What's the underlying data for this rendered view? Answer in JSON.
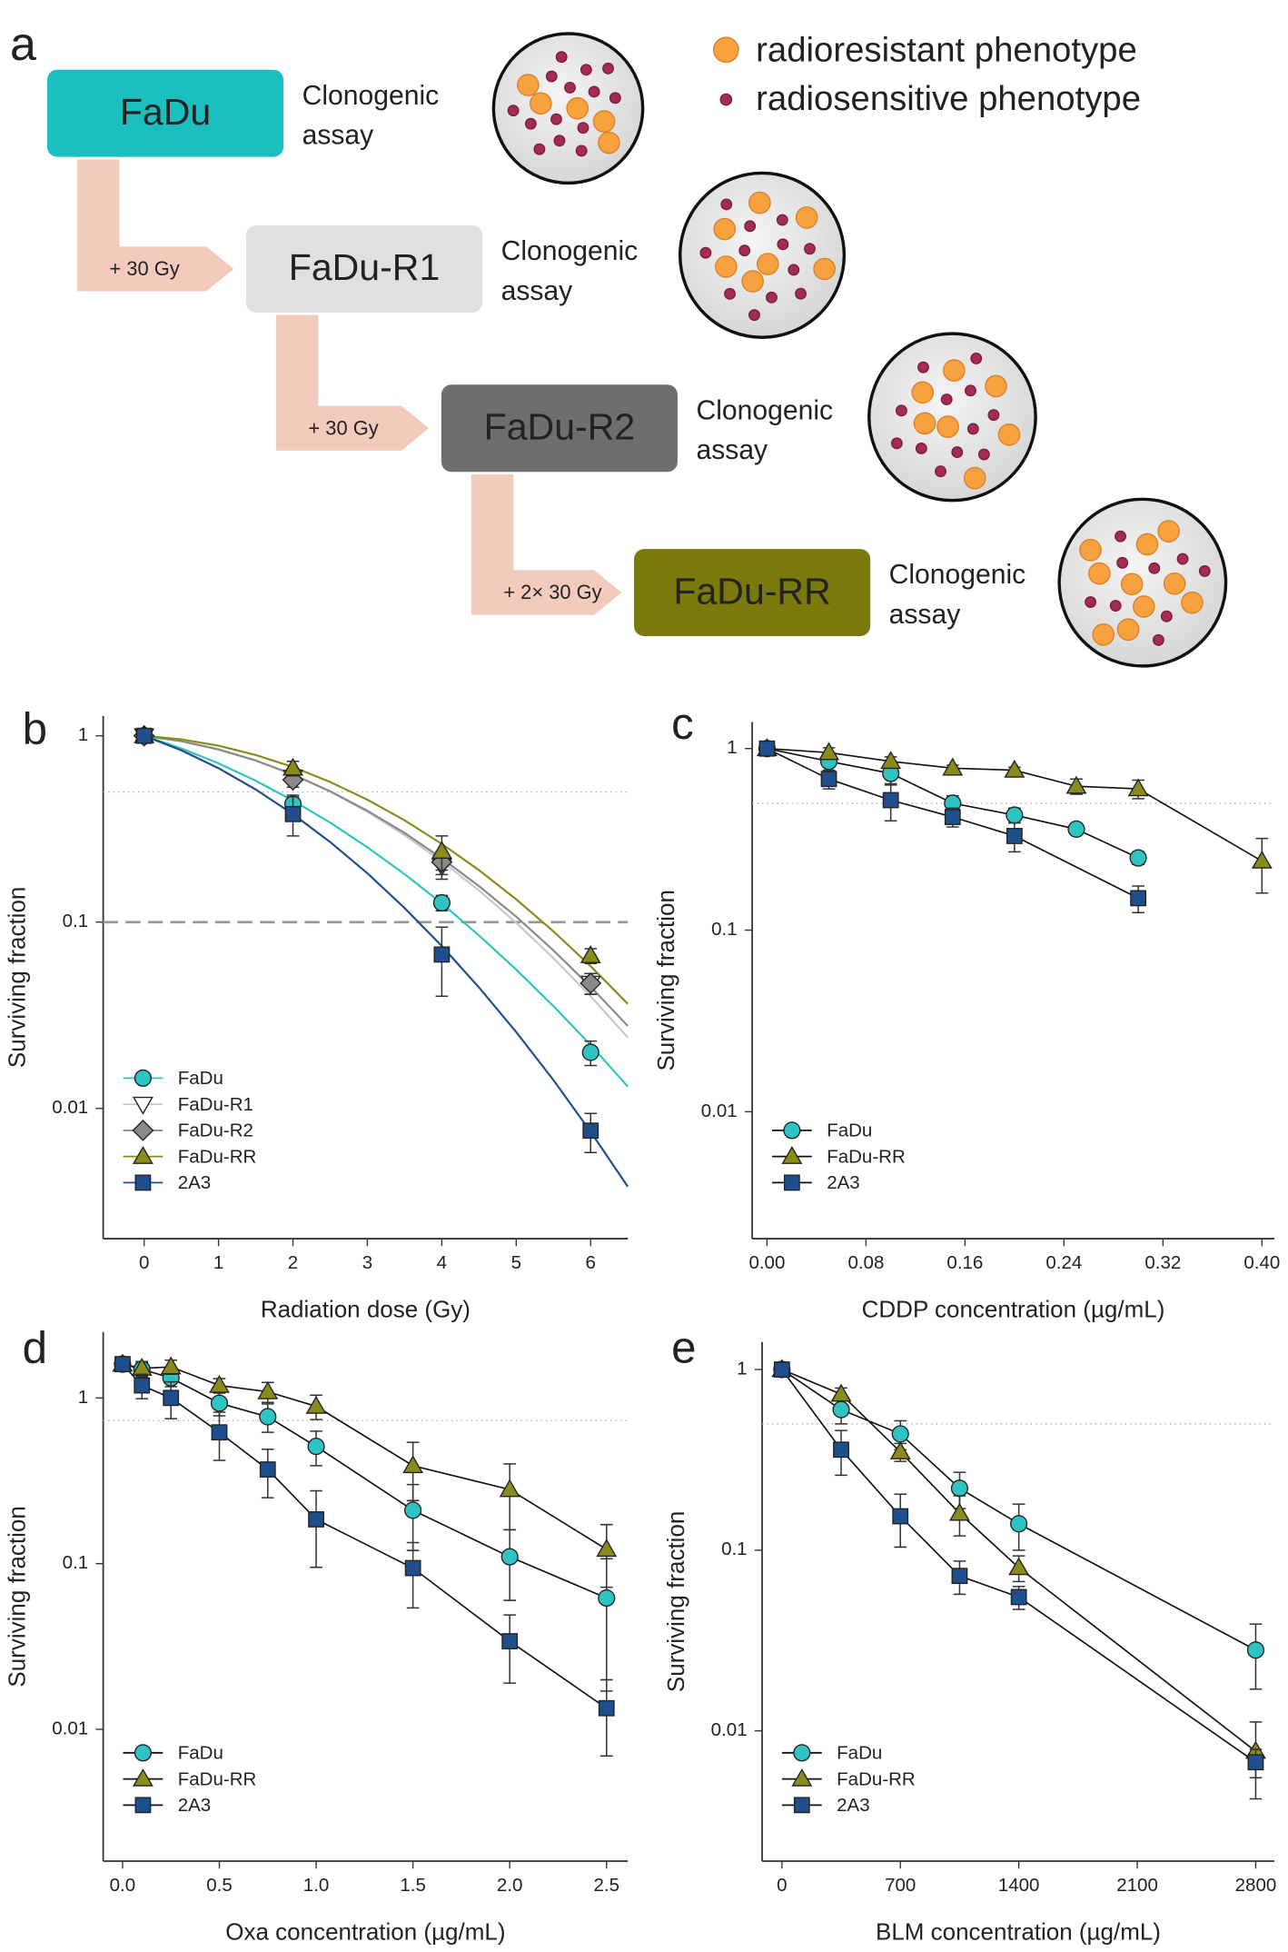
{
  "diagram": {
    "panel": "a",
    "legend": [
      {
        "label": "radioresistant phenotype",
        "color": "#f7a23e"
      },
      {
        "label": "radiosensitive phenotype",
        "color": "#a52a56"
      }
    ],
    "stages": [
      {
        "name": "FaDu",
        "box_color": "#1bbfbf",
        "text_color": "#ffffff",
        "result": [
          "Clonogenic",
          "assay"
        ]
      },
      {
        "name": "FaDu-R1",
        "box_color": "#e0e0e0",
        "text_color": "#ffffff",
        "result": [
          "Clonogenic",
          "assay"
        ]
      },
      {
        "name": "FaDu-R2",
        "box_color": "#6e6e6e",
        "text_color": "#ffffff",
        "result": [
          "Clonogenic",
          "assay"
        ]
      },
      {
        "name": "FaDu-RR",
        "box_color": "#7a7a0c",
        "text_color": "#ffffff",
        "result": [
          "Clonogenic",
          "assay"
        ]
      }
    ],
    "steps": [
      "+ 30 Gy",
      "+ 30 Gy",
      "+ 2× 30 Gy"
    ]
  },
  "chart_data": [
    {
      "type": "scatter",
      "panel": "b",
      "xlabel": "Radiation dose (Gy)",
      "ylabel": "Surviving fraction",
      "yscale": "log",
      "legend": "lower left",
      "xlim": [
        -0.55,
        6.5
      ],
      "ylim": [
        0.002,
        1.28
      ],
      "xticks": [
        0,
        1,
        2,
        3,
        4,
        5,
        6
      ],
      "yticks": [
        1,
        0.1,
        0.01
      ],
      "reference_lines": [
        {
          "value": 0.5,
          "style": "dotted"
        },
        {
          "value": 0.1,
          "style": "dashed"
        }
      ],
      "fit_x": [
        0,
        0.5,
        1,
        1.5,
        2,
        2.5,
        3,
        3.5,
        4,
        4.5,
        5,
        5.5,
        6,
        6.5
      ],
      "series": [
        {
          "name": "FaDu",
          "color": "#2ec4c4",
          "marker": "circle",
          "x": [
            0,
            2,
            4,
            6
          ],
          "values": [
            1,
            0.43,
            0.127,
            0.02
          ],
          "errors": [
            0.02,
            0.05,
            0.012,
            0.003
          ],
          "fit_values": [
            1,
            0.856,
            0.711,
            0.574,
            0.449,
            0.342,
            0.252,
            0.181,
            0.126,
            0.0848,
            0.0556,
            0.0354,
            0.0219,
            0.0131
          ]
        },
        {
          "name": "FaDu-R1",
          "color": "#c8c8c8",
          "marker": "triangle-down",
          "x": [
            0,
            2,
            4,
            6
          ],
          "values": [
            1,
            0.6,
            0.2,
            0.047
          ],
          "errors": [
            0.02,
            0.05,
            0.03,
            0.006
          ],
          "fit_values": [
            1,
            0.938,
            0.848,
            0.739,
            0.62,
            0.501,
            0.391,
            0.293,
            0.212,
            0.148,
            0.0992,
            0.0641,
            0.04,
            0.024
          ]
        },
        {
          "name": "FaDu-R2",
          "color": "#8a8a8a",
          "marker": "diamond",
          "x": [
            0,
            2,
            4,
            6
          ],
          "values": [
            1,
            0.58,
            0.21,
            0.047
          ],
          "errors": [
            0.02,
            0.05,
            0.03,
            0.006
          ],
          "fit_values": [
            1,
            0.935,
            0.844,
            0.736,
            0.62,
            0.504,
            0.396,
            0.301,
            0.22,
            0.156,
            0.107,
            0.0705,
            0.045,
            0.0277
          ]
        },
        {
          "name": "FaDu-RR",
          "color": "#8b8b1c",
          "marker": "triangle",
          "x": [
            0,
            2,
            4,
            6
          ],
          "values": [
            1,
            0.67,
            0.24,
            0.066
          ],
          "errors": [
            0.02,
            0.06,
            0.05,
            0.006
          ],
          "fit_values": [
            1,
            0.957,
            0.885,
            0.789,
            0.68,
            0.565,
            0.454,
            0.352,
            0.263,
            0.19,
            0.1325,
            0.0892,
            0.058,
            0.0364
          ]
        },
        {
          "name": "2A3",
          "color": "#1f4e8c",
          "marker": "square",
          "x": [
            0,
            2,
            4,
            6
          ],
          "values": [
            1,
            0.38,
            0.067,
            0.0076
          ],
          "errors": [
            0.02,
            0.09,
            0.027,
            0.0018
          ],
          "fit_values": [
            1,
            0.836,
            0.67,
            0.515,
            0.38,
            0.269,
            0.183,
            0.119,
            0.0744,
            0.0446,
            0.0257,
            0.0142,
            0.0075,
            0.0038
          ]
        }
      ]
    },
    {
      "type": "line",
      "panel": "c",
      "xlabel": "CDDP concentration (µg/mL)",
      "ylabel": "Surviving fraction",
      "yscale": "log",
      "legend": "lower left",
      "line_color": "#111111",
      "xlim": [
        -0.012,
        0.41
      ],
      "ylim": [
        0.002,
        1.4
      ],
      "xticks": [
        {
          "value": 0,
          "label": "0.00"
        },
        0.08,
        0.16,
        0.24,
        0.32,
        {
          "value": 0.4,
          "label": "0.40"
        }
      ],
      "yticks": [
        1,
        0.1,
        0.01
      ],
      "reference_lines": [
        {
          "value": 0.5,
          "style": "dotted"
        }
      ],
      "series": [
        {
          "name": "FaDu",
          "color": "#2ec4c4",
          "marker": "circle",
          "x": [
            0,
            0.05,
            0.1,
            0.15,
            0.2,
            0.25,
            0.3
          ],
          "values": [
            1,
            0.85,
            0.73,
            0.5,
            0.43,
            0.36,
            0.25
          ],
          "errors": [
            0.03,
            0.1,
            0.1,
            0.05,
            0.04,
            0.02,
            0.02
          ]
        },
        {
          "name": "FaDu-RR",
          "color": "#8b8b1c",
          "marker": "triangle",
          "x": [
            0,
            0.05,
            0.1,
            0.15,
            0.2,
            0.25,
            0.3,
            0.4
          ],
          "values": [
            1,
            0.95,
            0.85,
            0.78,
            0.76,
            0.62,
            0.6,
            0.24
          ],
          "errors": [
            0.03,
            0.06,
            0.05,
            0.03,
            0.03,
            0.06,
            0.07,
            0.08
          ]
        },
        {
          "name": "2A3",
          "color": "#1f4e8c",
          "marker": "square",
          "x": [
            0,
            0.05,
            0.1,
            0.15,
            0.2,
            0.3
          ],
          "values": [
            1,
            0.68,
            0.52,
            0.42,
            0.33,
            0.15
          ],
          "errors": [
            0.03,
            0.08,
            0.12,
            0.05,
            0.06,
            0.025
          ]
        }
      ]
    },
    {
      "type": "line",
      "panel": "d",
      "xlabel": "Oxa concentration (µg/mL)",
      "ylabel": "Surviving fraction",
      "yscale": "log",
      "legend": "lower left",
      "line_color": "#111111",
      "xlim": [
        -0.1,
        2.61
      ],
      "ylim": [
        0.0016,
        2.5
      ],
      "xticks": [
        {
          "value": 0,
          "label": "0.0"
        },
        0.5,
        {
          "value": 1,
          "label": "1.0"
        },
        1.5,
        {
          "value": 2,
          "label": "2.0"
        },
        2.5
      ],
      "yticks": [
        1,
        0.1,
        0.01
      ],
      "reference_lines": [
        {
          "value": 0.73,
          "style": "dotted"
        }
      ],
      "series": [
        {
          "name": "FaDu",
          "color": "#2ec4c4",
          "marker": "circle",
          "x": [
            0,
            0.1,
            0.25,
            0.5,
            0.75,
            1,
            1.5,
            2,
            2.5
          ],
          "values": [
            1.6,
            1.49,
            1.32,
            0.93,
            0.77,
            0.51,
            0.21,
            0.11,
            0.062
          ],
          "errors": [
            0.1,
            0.15,
            0.15,
            0.15,
            0.15,
            0.12,
            0.09,
            0.05,
            0.045
          ]
        },
        {
          "name": "FaDu-RR",
          "color": "#8b8b1c",
          "marker": "triangle",
          "x": [
            0,
            0.1,
            0.25,
            0.5,
            0.75,
            1,
            1.5,
            2,
            2.5
          ],
          "values": [
            1.6,
            1.51,
            1.54,
            1.19,
            1.09,
            0.89,
            0.39,
            0.28,
            0.122
          ],
          "errors": [
            0.1,
            0.15,
            0.15,
            0.12,
            0.15,
            0.15,
            0.15,
            0.12,
            0.05
          ]
        },
        {
          "name": "2A3",
          "color": "#1f4e8c",
          "marker": "square",
          "x": [
            0,
            0.1,
            0.25,
            0.5,
            0.75,
            1,
            1.5,
            2,
            2.5
          ],
          "values": [
            1.6,
            1.19,
            1.0,
            0.62,
            0.37,
            0.185,
            0.094,
            0.034,
            0.0134
          ],
          "errors": [
            0.1,
            0.2,
            0.25,
            0.2,
            0.12,
            0.09,
            0.04,
            0.015,
            0.0065
          ]
        }
      ]
    },
    {
      "type": "line",
      "panel": "e",
      "xlabel": "BLM concentration (µg/mL)",
      "ylabel": "Surviving fraction",
      "yscale": "log",
      "legend": "lower left",
      "line_color": "#111111",
      "xlim": [
        -117,
        2910
      ],
      "ylim": [
        0.0019,
        1.42
      ],
      "xticks": [
        0,
        700,
        1400,
        2100,
        2800
      ],
      "yticks": [
        1,
        0.1,
        0.01
      ],
      "reference_lines": [
        {
          "value": 0.5,
          "style": "dotted"
        }
      ],
      "series": [
        {
          "name": "FaDu",
          "color": "#2ec4c4",
          "marker": "circle",
          "x": [
            0,
            350,
            700,
            1050,
            1400,
            2800
          ],
          "values": [
            1,
            0.6,
            0.44,
            0.22,
            0.14,
            0.028
          ],
          "errors": [
            0.03,
            0.1,
            0.08,
            0.05,
            0.04,
            0.011
          ]
        },
        {
          "name": "FaDu-RR",
          "color": "#8b8b1c",
          "marker": "triangle",
          "x": [
            0,
            350,
            700,
            1050,
            1400,
            2800
          ],
          "values": [
            1,
            0.73,
            0.35,
            0.16,
            0.08,
            0.0077
          ],
          "errors": [
            0.03,
            0.06,
            0.04,
            0.04,
            0.013,
            0.0035
          ]
        },
        {
          "name": "2A3",
          "color": "#1f4e8c",
          "marker": "square",
          "x": [
            0,
            350,
            700,
            1050,
            1400,
            2800
          ],
          "values": [
            1,
            0.36,
            0.154,
            0.072,
            0.055,
            0.0067
          ],
          "errors": [
            0.03,
            0.1,
            0.05,
            0.015,
            0.008,
            0.0012
          ]
        }
      ]
    }
  ]
}
